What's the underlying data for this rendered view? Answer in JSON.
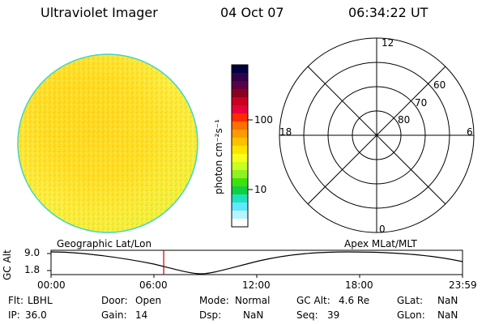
{
  "header": {
    "app_title": "Ultraviolet Imager",
    "date": "04 Oct 07",
    "time": "06:34:22 UT"
  },
  "colorbar": {
    "unit_label": "photon cm⁻²s⁻¹",
    "ticks": [
      "100",
      "10"
    ],
    "colors": [
      "#000040",
      "#30004a",
      "#5a0044",
      "#8a0020",
      "#c8001e",
      "#e8003a",
      "#ff2a00",
      "#ff7000",
      "#ff9a00",
      "#ffc000",
      "#ffe400",
      "#f8ff1a",
      "#c8ff20",
      "#90f020",
      "#40e010",
      "#10d040",
      "#20e0c0",
      "#60e8ff",
      "#b8f4ff",
      "#ffffff"
    ]
  },
  "polar_plot": {
    "mlt_labels": [
      "12",
      "18",
      "6",
      "0"
    ],
    "lat_labels": [
      "60",
      "70",
      "80"
    ]
  },
  "timeline": {
    "yaxis_title": "GC Alt",
    "y_ticks": [
      "9.0",
      "1.8"
    ],
    "left_label": "Geographic Lat/Lon",
    "right_label": "Apex  MLat/MLT",
    "x_ticks": [
      "00:00",
      "06:00",
      "12:00",
      "18:00",
      "23:59"
    ],
    "current_marker_fraction": 0.2738,
    "marker_color": "#c00000"
  },
  "info": {
    "flt_label": "Flt:",
    "flt_value": "LBHL",
    "ip_label": "IP:",
    "ip_value": "36.0",
    "door_label": "Door:",
    "door_value": "Open",
    "gain_label": "Gain:",
    "gain_value": "14",
    "mode_label": "Mode:",
    "mode_value": "Normal",
    "dsp_label": "Dsp:",
    "dsp_value": "NaN",
    "gcalt_label": "GC Alt:",
    "gcalt_value": "4.6 Re",
    "seq_label": "Seq:",
    "seq_value": "39",
    "glat_label": "GLat:",
    "glat_value": "NaN",
    "glon_label": "GLon:",
    "glon_value": "NaN"
  }
}
